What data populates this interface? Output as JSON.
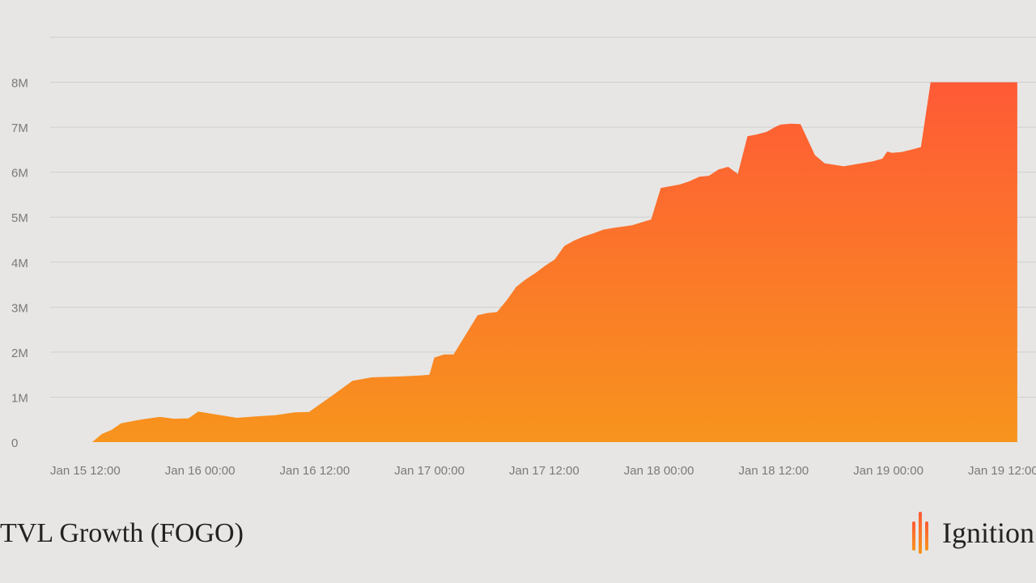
{
  "chart_data": {
    "type": "area",
    "title": "TVL Growth (FOGO)",
    "xlabel": "",
    "ylabel": "",
    "x_tick_labels": [
      "Jan 15 12:00",
      "Jan 16 00:00",
      "Jan 16 12:00",
      "Jan 17 00:00",
      "Jan 17 12:00",
      "Jan 18 00:00",
      "Jan 18 12:00",
      "Jan 19 00:00",
      "Jan 19 12:00"
    ],
    "y_tick_labels": [
      "0",
      "1M",
      "2M",
      "3M",
      "4M",
      "5M",
      "6M",
      "7M",
      "8M"
    ],
    "y_ticks": [
      0,
      1000000,
      2000000,
      3000000,
      4000000,
      5000000,
      6000000,
      7000000,
      8000000
    ],
    "ylim": [
      0,
      9000000
    ],
    "xlim": [
      "2025-01-15T12:00",
      "2025-01-19T12:00"
    ],
    "grid": true,
    "gradient_colors": [
      "#ff5a36",
      "#f7941d"
    ],
    "series": [
      {
        "x": [
          "2025-01-15T13:00",
          "2025-01-15T14:00",
          "2025-01-15T15:00",
          "2025-01-15T16:00",
          "2025-01-15T18:00",
          "2025-01-15T20:00",
          "2025-01-15T21:30",
          "2025-01-15T23:00",
          "2025-01-16T00:00",
          "2025-01-16T04:00",
          "2025-01-16T06:00",
          "2025-01-16T08:00",
          "2025-01-16T10:00",
          "2025-01-16T11:30",
          "2025-01-16T12:30",
          "2025-01-16T14:00",
          "2025-01-16T16:00",
          "2025-01-16T18:00",
          "2025-01-16T21:00",
          "2025-01-16T23:00",
          "2025-01-17T00:00",
          "2025-01-17T00:30",
          "2025-01-17T01:30",
          "2025-01-17T02:30",
          "2025-01-17T05:00",
          "2025-01-17T06:00",
          "2025-01-17T07:00",
          "2025-01-17T08:00",
          "2025-01-17T09:00",
          "2025-01-17T10:00",
          "2025-01-17T11:00",
          "2025-01-17T12:00",
          "2025-01-17T13:00",
          "2025-01-17T14:00",
          "2025-01-17T15:00",
          "2025-01-17T16:00",
          "2025-01-17T17:00",
          "2025-01-17T18:00",
          "2025-01-17T19:00",
          "2025-01-17T21:00",
          "2025-01-17T23:00",
          "2025-01-18T00:00",
          "2025-01-18T02:00",
          "2025-01-18T03:00",
          "2025-01-18T04:00",
          "2025-01-18T05:00",
          "2025-01-18T06:00",
          "2025-01-18T07:00",
          "2025-01-18T08:00",
          "2025-01-18T09:00",
          "2025-01-18T10:00",
          "2025-01-18T11:00",
          "2025-01-18T12:00",
          "2025-01-18T12:30",
          "2025-01-18T13:30",
          "2025-01-18T14:30",
          "2025-01-18T16:00",
          "2025-01-18T17:00",
          "2025-01-18T19:00",
          "2025-01-18T22:00",
          "2025-01-18T23:00",
          "2025-01-18T23:30",
          "2025-01-19T00:00",
          "2025-01-19T01:00",
          "2025-01-19T02:00",
          "2025-01-19T03:00",
          "2025-01-19T04:00",
          "2025-01-19T05:00",
          "2025-01-19T06:00",
          "2025-01-19T07:00",
          "2025-01-19T08:00",
          "2025-01-19T09:00",
          "2025-01-19T10:00",
          "2025-01-19T11:00",
          "2025-01-19T12:00",
          "2025-01-19T13:00"
        ],
        "values": [
          0,
          180000,
          270000,
          420000,
          500000,
          560000,
          520000,
          530000,
          680000,
          540000,
          570000,
          600000,
          660000,
          670000,
          820000,
          1050000,
          1360000,
          1440000,
          1460000,
          1480000,
          1500000,
          1880000,
          1950000,
          1950000,
          2820000,
          2870000,
          2890000,
          3150000,
          3450000,
          3620000,
          3760000,
          3920000,
          4060000,
          4360000,
          4480000,
          4570000,
          4640000,
          4720000,
          4760000,
          4820000,
          4950000,
          5650000,
          5730000,
          5800000,
          5900000,
          5920000,
          6060000,
          6120000,
          5960000,
          6800000,
          6840000,
          6900000,
          7020000,
          7060000,
          7080000,
          7070000,
          6380000,
          6200000,
          6130000,
          6240000,
          6300000,
          6460000,
          6430000,
          6450000,
          6500000,
          6560000,
          8000000,
          8000000,
          8000000,
          8000000,
          8000000,
          8000000,
          8000000,
          8000000,
          8000000,
          8000000
        ]
      }
    ]
  },
  "footer": {
    "title": "TVL Growth (FOGO)",
    "brand": "Ignition"
  }
}
